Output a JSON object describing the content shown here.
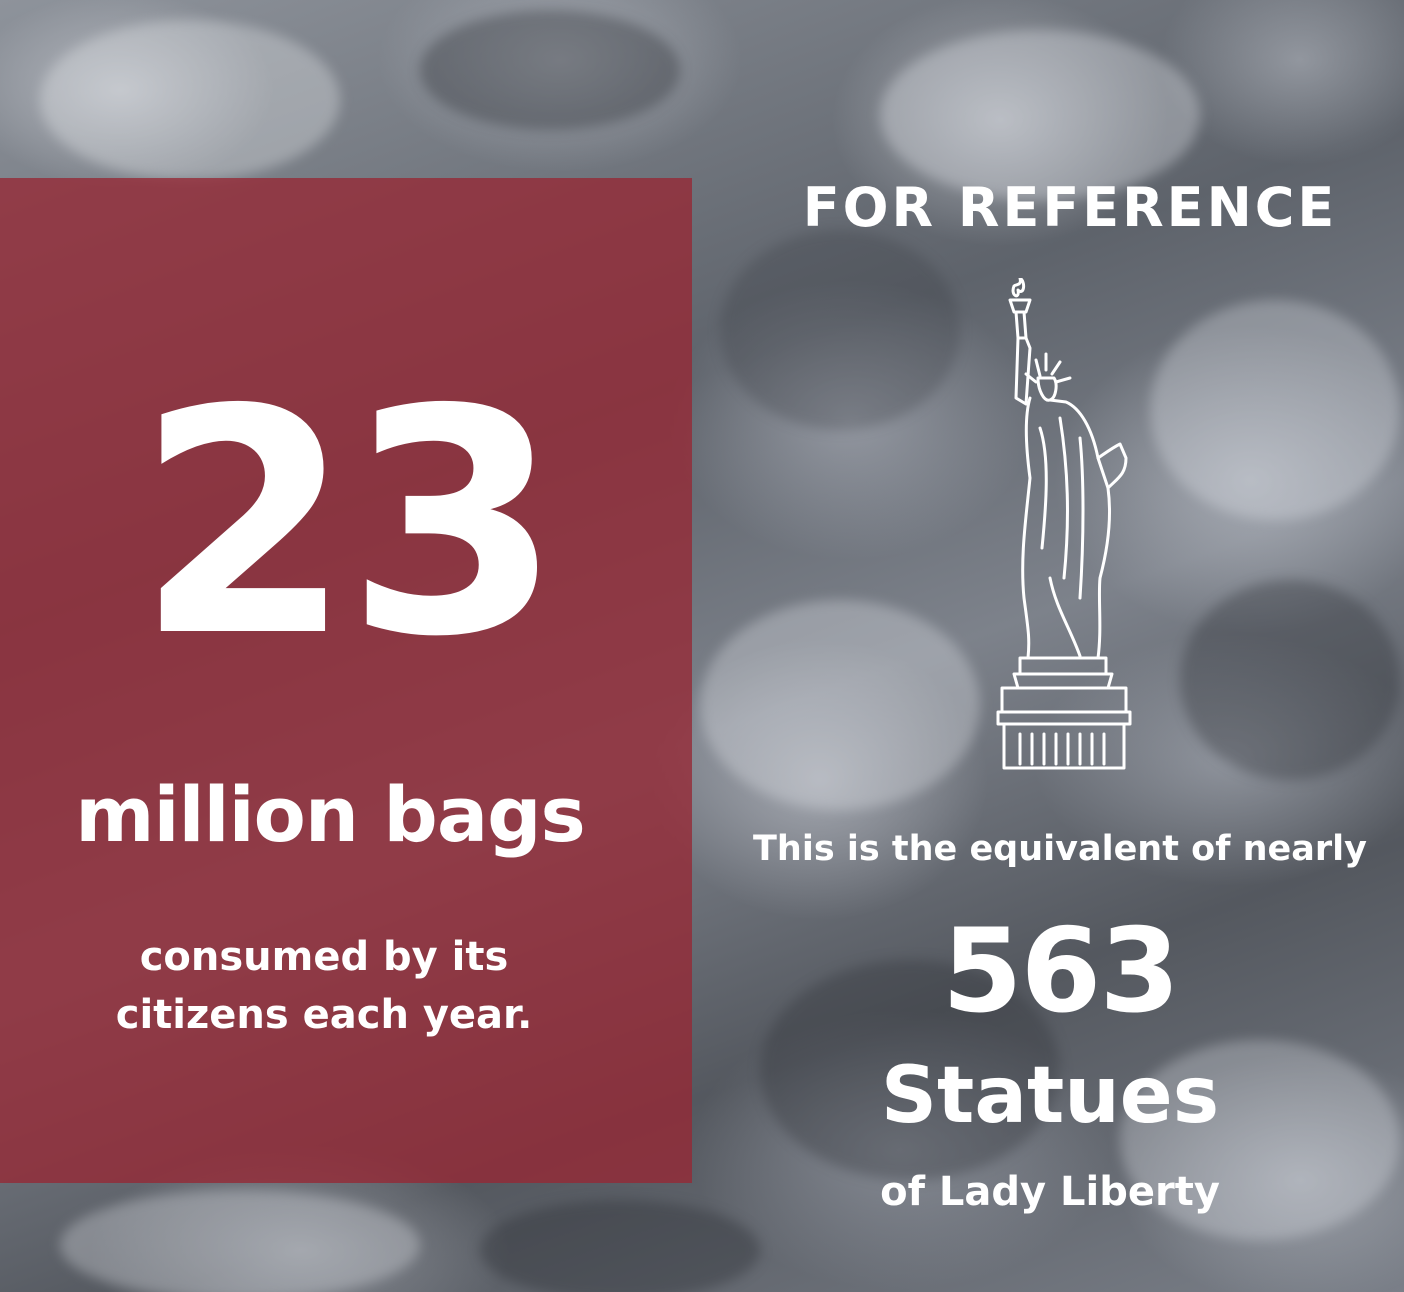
{
  "left_panel": {
    "number": "23",
    "unit": "million bags",
    "caption_line1": "consumed by its",
    "caption_line2": "citizens each year."
  },
  "right_panel": {
    "title": "FOR REFERENCE",
    "icon": "statue-of-liberty-icon",
    "equivalent_text": "This is the equivalent of nearly",
    "number": "563",
    "unit": "Statues",
    "subtext": "of Lady Liberty"
  },
  "colors": {
    "panel_red": "#962834",
    "text": "#ffffff"
  }
}
